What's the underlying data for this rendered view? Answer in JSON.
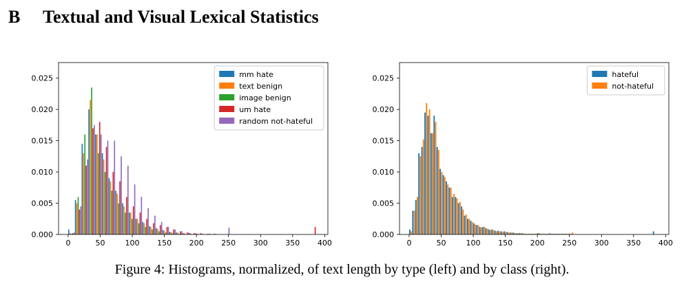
{
  "section": {
    "number": "B",
    "title": "Textual and Visual Lexical Statistics"
  },
  "caption": "Figure 4: Histograms, normalized, of text length by type (left) and by class (right).",
  "chart_data": [
    {
      "type": "bar",
      "title": "",
      "xlabel": "",
      "ylabel": "",
      "xlim": [
        -15,
        405
      ],
      "ylim": [
        0,
        0.0275
      ],
      "xticks": [
        0,
        50,
        100,
        150,
        200,
        250,
        300,
        350,
        400
      ],
      "yticks": [
        0.0,
        0.005,
        0.01,
        0.015,
        0.02,
        0.025
      ],
      "ytick_labels": [
        "0.000",
        "0.005",
        "0.010",
        "0.015",
        "0.020",
        "0.025"
      ],
      "legend_position": "top-right",
      "bin_width": 10.5,
      "bin_starts": [
        0,
        10.5,
        21,
        31.5,
        42,
        52.5,
        63,
        73.5,
        84,
        94.5,
        105,
        115.5,
        126,
        136.5,
        147,
        157.5,
        168,
        178.5,
        189,
        199.5,
        210,
        220.5,
        231,
        241.5,
        252,
        262.5,
        273,
        283.5,
        294,
        304.5,
        315,
        325.5,
        336,
        346.5,
        357,
        367.5,
        378
      ],
      "series": [
        {
          "name": "mm hate",
          "color": "#1f77b4",
          "values": [
            0.0008,
            0.0055,
            0.0145,
            0.02,
            0.016,
            0.013,
            0.009,
            0.007,
            0.005,
            0.0035,
            0.0025,
            0.002,
            0.0013,
            0.001,
            0.0007,
            0.0004,
            0.0003,
            0.0002,
            0.0002,
            0.0001,
            0.0001,
            0.0001,
            0,
            0,
            0,
            0,
            0,
            0,
            0,
            0,
            0,
            0,
            0,
            0,
            0,
            0,
            0
          ]
        },
        {
          "name": "text benign",
          "color": "#ff7f0e",
          "values": [
            0.0002,
            0.005,
            0.013,
            0.0215,
            0.016,
            0.012,
            0.0085,
            0.0065,
            0.0045,
            0.0035,
            0.0025,
            0.0018,
            0.0012,
            0.0009,
            0.0006,
            0.0004,
            0.0003,
            0.0002,
            0.0001,
            0.0001,
            0,
            0,
            0,
            0,
            0,
            0,
            0,
            0,
            0,
            0,
            0,
            0,
            0,
            0,
            0,
            0,
            0
          ]
        },
        {
          "name": "image benign",
          "color": "#2ca02c",
          "values": [
            0.0001,
            0.006,
            0.016,
            0.0235,
            0.013,
            0.01,
            0.007,
            0.005,
            0.0035,
            0.0025,
            0.0018,
            0.0012,
            0.0008,
            0.0005,
            0.0003,
            0.0002,
            0.0001,
            0,
            0,
            0,
            0,
            0,
            0,
            0,
            0,
            0,
            0,
            0,
            0,
            0,
            0,
            0,
            0,
            0,
            0,
            0,
            0
          ]
        },
        {
          "name": "um hate",
          "color": "#d62728",
          "values": [
            0.0002,
            0.004,
            0.011,
            0.017,
            0.018,
            0.014,
            0.01,
            0.0085,
            0.006,
            0.0045,
            0.0035,
            0.0025,
            0.0018,
            0.0015,
            0.0012,
            0.0008,
            0.0005,
            0.0003,
            0.0002,
            0.0002,
            0.0001,
            0.0001,
            0,
            0,
            0,
            0,
            0,
            0,
            0,
            0,
            0,
            0,
            0,
            0,
            0,
            0,
            0.0012
          ]
        },
        {
          "name": "random not-hateful",
          "color": "#9467bd",
          "values": [
            0.0003,
            0.0045,
            0.012,
            0.0175,
            0.016,
            0.015,
            0.015,
            0.0125,
            0.011,
            0.008,
            0.006,
            0.0042,
            0.003,
            0.002,
            0.0012,
            0.0008,
            0.0005,
            0.0003,
            0.0002,
            0.0001,
            0.0001,
            0.0001,
            0,
            0.0011,
            0,
            0,
            0,
            0,
            0,
            0,
            0,
            0,
            0,
            0,
            0,
            0,
            0
          ]
        }
      ]
    },
    {
      "type": "bar",
      "title": "",
      "xlabel": "",
      "ylabel": "",
      "xlim": [
        -15,
        405
      ],
      "ylim": [
        0,
        0.0275
      ],
      "xticks": [
        0,
        50,
        100,
        150,
        200,
        250,
        300,
        350,
        400
      ],
      "yticks": [
        0.0,
        0.005,
        0.01,
        0.015,
        0.02,
        0.025
      ],
      "ytick_labels": [
        "0.000",
        "0.005",
        "0.010",
        "0.015",
        "0.020",
        "0.025"
      ],
      "legend_position": "top-right",
      "bin_width": 4.75,
      "bin_starts": [
        0,
        4.75,
        9.5,
        14.25,
        19,
        23.75,
        28.5,
        33.25,
        38,
        42.75,
        47.5,
        52.25,
        57,
        61.75,
        66.5,
        71.25,
        76,
        80.75,
        85.5,
        90.25,
        95,
        99.75,
        104.5,
        109.25,
        114,
        118.75,
        123.5,
        128.25,
        133,
        137.75,
        142.5,
        147.25,
        152,
        156.75,
        161.5,
        166.25,
        171,
        175.75,
        180.5,
        185.25,
        190,
        194.75,
        199.5,
        204.25,
        209,
        213.75,
        218.5,
        223.25,
        228,
        232.75,
        237.5,
        242.25,
        247,
        251.75,
        256.5,
        261.25,
        266,
        270.75,
        275.5,
        280.25,
        285,
        289.75,
        294.5,
        299.25,
        304,
        308.75,
        313.5,
        318.25,
        323,
        327.75,
        332.5,
        337.25,
        342,
        346.75,
        351.5,
        356.25,
        361,
        365.75,
        370.5,
        375.25,
        380
      ],
      "series": [
        {
          "name": "hateful",
          "color": "#1f77b4",
          "values": [
            0.0008,
            0.0038,
            0.0055,
            0.013,
            0.014,
            0.0195,
            0.019,
            0.0162,
            0.019,
            0.014,
            0.0105,
            0.0095,
            0.0085,
            0.0075,
            0.006,
            0.006,
            0.005,
            0.0045,
            0.003,
            0.0025,
            0.0022,
            0.0018,
            0.0015,
            0.0012,
            0.0012,
            0.001,
            0.0008,
            0.0008,
            0.0006,
            0.0006,
            0.0005,
            0.0005,
            0.0004,
            0.0003,
            0.0003,
            0.0002,
            0.0002,
            0.0002,
            0.0001,
            0.0001,
            0.0001,
            0.0001,
            0.0002,
            0.0001,
            0.0001,
            0.0001,
            0.0002,
            0.0001,
            0.0001,
            0.0001,
            0.0001,
            0.0001,
            0.0001,
            0.0001,
            0,
            0,
            0,
            0,
            0,
            0,
            0,
            0,
            0,
            0,
            0,
            0,
            0,
            0,
            0,
            0,
            0,
            0,
            0,
            0,
            0,
            0,
            0,
            0,
            0,
            0,
            0.0005
          ]
        },
        {
          "name": "not-hateful",
          "color": "#ff7f0e",
          "values": [
            0.0005,
            0.0038,
            0.006,
            0.0125,
            0.0152,
            0.021,
            0.02,
            0.0162,
            0.018,
            0.0135,
            0.01,
            0.0092,
            0.008,
            0.0075,
            0.0065,
            0.0058,
            0.0052,
            0.004,
            0.0032,
            0.0025,
            0.002,
            0.0016,
            0.0015,
            0.0011,
            0.0012,
            0.0009,
            0.0007,
            0.0007,
            0.0005,
            0.0005,
            0.0004,
            0.0004,
            0.0003,
            0.0003,
            0.0002,
            0.0002,
            0.0002,
            0.0001,
            0.0001,
            0.0001,
            0.0001,
            0.0001,
            0.0002,
            0.0001,
            0.0001,
            0.0001,
            0.0001,
            0.0001,
            0.0001,
            0.0001,
            0.0001,
            0.0001,
            0.0001,
            0.0003,
            0,
            0,
            0,
            0,
            0,
            0,
            0,
            0,
            0,
            0,
            0,
            0,
            0,
            0,
            0,
            0,
            0,
            0,
            0,
            0,
            0,
            0,
            0,
            0,
            0,
            0,
            0
          ]
        }
      ]
    }
  ]
}
